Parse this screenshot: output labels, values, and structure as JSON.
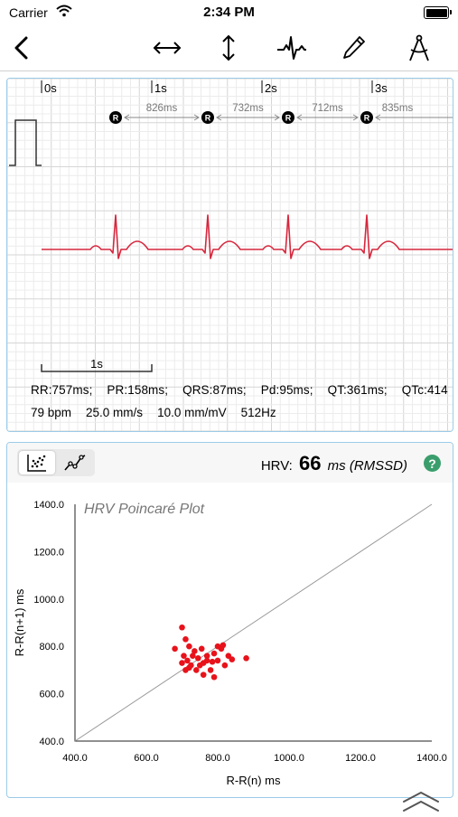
{
  "status_bar": {
    "carrier": "Carrier",
    "time": "2:34 PM"
  },
  "toolbar": {
    "back_icon": "chevron-left-icon",
    "tools": [
      "horizontal-arrows-icon",
      "vertical-arrows-icon",
      "waveform-icon",
      "pencil-icon",
      "compass-icon"
    ]
  },
  "ecg": {
    "time_markers": [
      "0s",
      "1s",
      "2s",
      "3s"
    ],
    "r_label": "R",
    "rr_intervals": [
      "826ms",
      "732ms",
      "712ms",
      "835ms"
    ],
    "scale_label": "1s",
    "measurements": [
      "RR:757ms;",
      "PR:158ms;",
      "QRS:87ms;",
      "Pd:95ms;",
      "QT:361ms;",
      "QTc:414"
    ],
    "settings": [
      "79 bpm",
      "25.0 mm/s",
      "10.0 mm/mV",
      "512Hz"
    ],
    "colors": {
      "grid_minor": "#ececec",
      "grid_major": "#d6d6d6",
      "trace": "#d7263d"
    }
  },
  "hrv": {
    "label": "HRV:",
    "value": "66",
    "unit": "ms (RMSSD)",
    "help": "?",
    "modes": [
      "scatter-plot-icon",
      "line-chart-icon"
    ],
    "active_mode": "scatter"
  },
  "chart_data": {
    "type": "scatter",
    "title": "HRV Poincaré Plot",
    "xlabel": "R-R(n) ms",
    "ylabel": "R-R(n+1) ms",
    "xlim": [
      400,
      1400
    ],
    "ylim": [
      400,
      1400
    ],
    "xticks": [
      "400.0",
      "600.0",
      "800.0",
      "1000.0",
      "1200.0",
      "1400.0"
    ],
    "yticks": [
      "400.0",
      "600.0",
      "800.0",
      "1000.0",
      "1200.0",
      "1400.0"
    ],
    "identity_line": true,
    "grid": false,
    "point_color": "#e8121b",
    "points": [
      [
        680,
        790
      ],
      [
        700,
        880
      ],
      [
        710,
        830
      ],
      [
        720,
        800
      ],
      [
        705,
        760
      ],
      [
        715,
        740
      ],
      [
        725,
        720
      ],
      [
        735,
        780
      ],
      [
        745,
        750
      ],
      [
        755,
        790
      ],
      [
        760,
        730
      ],
      [
        770,
        760
      ],
      [
        780,
        700
      ],
      [
        790,
        770
      ],
      [
        800,
        740
      ],
      [
        810,
        790
      ],
      [
        820,
        720
      ],
      [
        830,
        760
      ],
      [
        740,
        700
      ],
      [
        760,
        680
      ],
      [
        790,
        670
      ],
      [
        700,
        730
      ],
      [
        720,
        710
      ],
      [
        750,
        720
      ],
      [
        770,
        740
      ],
      [
        785,
        735
      ],
      [
        815,
        805
      ],
      [
        840,
        745
      ],
      [
        880,
        750
      ],
      [
        710,
        700
      ],
      [
        730,
        760
      ],
      [
        800,
        800
      ]
    ]
  }
}
